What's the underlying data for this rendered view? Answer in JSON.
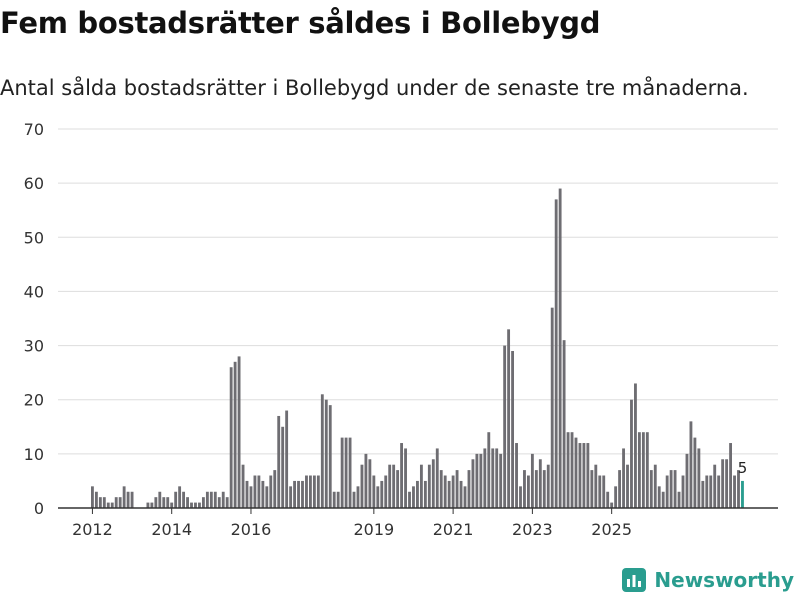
{
  "header": {
    "title": "Fem bostadsrätter såldes i Bollebygd",
    "subtitle": "Antal sålda bostadsrätter i Bollebygd under de senaste tre månaderna."
  },
  "brand": {
    "name": "Newsworthy",
    "color": "#2a9d8f"
  },
  "colors": {
    "bar": "#6e6d72",
    "highlight": "#2a9d8f",
    "grid": "#dddddd",
    "axis": "#333333",
    "text": "#333333"
  },
  "chart_data": {
    "type": "bar",
    "title": "Fem bostadsrätter såldes i Bollebygd",
    "subtitle": "Antal sålda bostadsrätter i Bollebygd under de senaste tre månaderna.",
    "xlabel": "",
    "ylabel": "",
    "ylim": [
      0,
      70
    ],
    "yticks": [
      0,
      10,
      20,
      30,
      40,
      50,
      60,
      70
    ],
    "xticks": [
      {
        "label": "2012",
        "index": 0
      },
      {
        "label": "2014",
        "index": 20
      },
      {
        "label": "2016",
        "index": 40
      },
      {
        "label": "2019",
        "index": 71
      },
      {
        "label": "2021",
        "index": 91
      },
      {
        "label": "2023",
        "index": 111
      },
      {
        "label": "2025",
        "index": 131
      }
    ],
    "grid": true,
    "values": [
      4,
      3,
      2,
      2,
      1,
      1,
      2,
      2,
      4,
      3,
      3,
      0,
      0,
      0,
      1,
      1,
      2,
      3,
      2,
      2,
      1,
      3,
      4,
      3,
      2,
      1,
      1,
      1,
      2,
      3,
      3,
      3,
      2,
      3,
      2,
      26,
      27,
      28,
      8,
      5,
      4,
      6,
      6,
      5,
      4,
      6,
      7,
      17,
      15,
      18,
      4,
      5,
      5,
      5,
      6,
      6,
      6,
      6,
      21,
      20,
      19,
      3,
      3,
      13,
      13,
      13,
      3,
      4,
      8,
      10,
      9,
      6,
      4,
      5,
      6,
      8,
      8,
      7,
      12,
      11,
      3,
      4,
      5,
      8,
      5,
      8,
      9,
      11,
      7,
      6,
      5,
      6,
      7,
      5,
      4,
      7,
      9,
      10,
      10,
      11,
      14,
      11,
      11,
      10,
      30,
      33,
      29,
      12,
      4,
      7,
      6,
      10,
      7,
      9,
      7,
      8,
      37,
      57,
      59,
      31,
      14,
      14,
      13,
      12,
      12,
      12,
      7,
      8,
      6,
      6,
      3,
      1,
      4,
      7,
      11,
      8,
      20,
      23,
      14,
      14,
      14,
      7,
      8,
      4,
      3,
      6,
      7,
      7,
      3,
      6,
      10,
      16,
      13,
      11,
      5,
      6,
      6,
      8,
      6,
      9,
      9,
      12,
      6,
      7,
      5
    ],
    "highlight_last": true,
    "last_value_label": "5"
  }
}
